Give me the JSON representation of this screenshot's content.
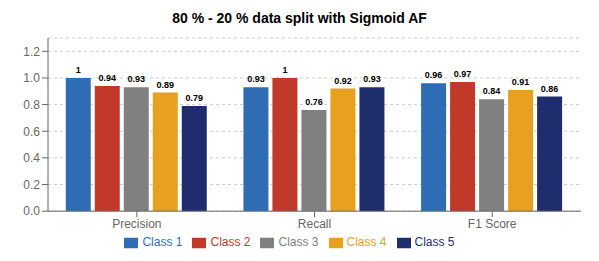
{
  "chart_data": {
    "type": "bar",
    "title": "80 % - 20 % data split with Sigmoid AF",
    "categories": [
      "Precision",
      "Recall",
      "F1 Score"
    ],
    "series": [
      {
        "name": "Class 1",
        "color": "#2e6db4",
        "values": [
          1.0,
          0.93,
          0.96
        ]
      },
      {
        "name": "Class 2",
        "color": "#c0392b",
        "values": [
          0.94,
          1.0,
          0.97
        ]
      },
      {
        "name": "Class 3",
        "color": "#808080",
        "values": [
          0.93,
          0.76,
          0.84
        ]
      },
      {
        "name": "Class 4",
        "color": "#e8a020",
        "values": [
          0.89,
          0.92,
          0.91
        ]
      },
      {
        "name": "Class 5",
        "color": "#1f2d6e",
        "values": [
          0.79,
          0.93,
          0.86
        ]
      }
    ],
    "ylim": [
      0,
      1.3
    ],
    "yticks": [
      {
        "value": 0,
        "label": "0.0"
      },
      0.2,
      0.4,
      0.6,
      0.8,
      {
        "value": 1.0,
        "label": "1.0"
      },
      1.2
    ],
    "grid": true,
    "legend": "bottom",
    "data_labels": true
  }
}
